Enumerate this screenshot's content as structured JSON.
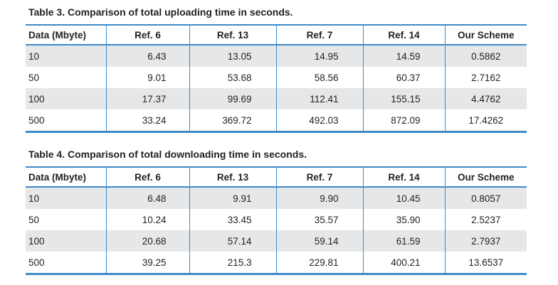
{
  "headers": [
    "Data (Mbyte)",
    "Ref. 6",
    "Ref. 13",
    "Ref. 7",
    "Ref. 14",
    "Our Scheme"
  ],
  "table3": {
    "caption": "Table 3. Comparison of total uploading time in seconds.",
    "rows": [
      [
        "10",
        "6.43",
        "13.05",
        "14.95",
        "14.59",
        "0.5862"
      ],
      [
        "50",
        "9.01",
        "53.68",
        "58.56",
        "60.37",
        "2.7162"
      ],
      [
        "100",
        "17.37",
        "99.69",
        "112.41",
        "155.15",
        "4.4762"
      ],
      [
        "500",
        "33.24",
        "369.72",
        "492.03",
        "872.09",
        "17.4262"
      ]
    ]
  },
  "table4": {
    "caption": "Table 4. Comparison of total downloading time in seconds.",
    "rows": [
      [
        "10",
        "6.48",
        "9.91",
        "9.90",
        "10.45",
        "0.8057"
      ],
      [
        "50",
        "10.24",
        "33.45",
        "35.57",
        "35.90",
        "2.5237"
      ],
      [
        "100",
        "20.68",
        "57.14",
        "59.14",
        "61.59",
        "2.7937"
      ],
      [
        "500",
        "39.25",
        "215.3",
        "229.81",
        "400.21",
        "13.6537"
      ]
    ]
  },
  "colors": {
    "rule": "#3c8ac8",
    "shade": "#e6e7e8",
    "text": "#231f20"
  }
}
